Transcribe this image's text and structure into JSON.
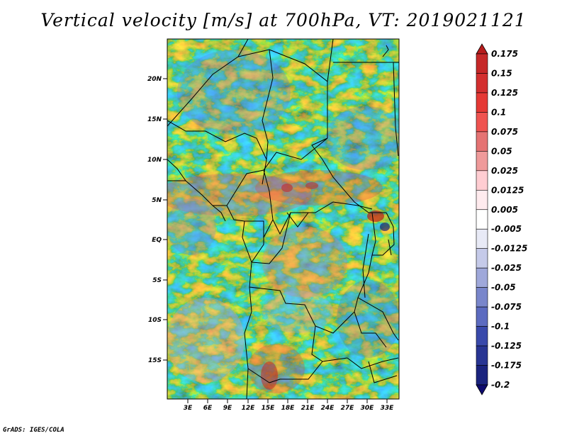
{
  "title": "Vertical velocity [m/s] at 700hPa, VT: 2019021121",
  "credit": "GrADS: IGES/COLA",
  "lat_labels": [
    "20N",
    "15N",
    "10N",
    "5N",
    "EQ",
    "5S",
    "10S",
    "15S"
  ],
  "lon_labels": [
    "3E",
    "6E",
    "9E",
    "12E",
    "15E",
    "18E",
    "21E",
    "24E",
    "27E",
    "30E",
    "33E"
  ],
  "colorbar": {
    "labels": [
      "0.175",
      "0.15",
      "0.125",
      "0.1",
      "0.075",
      "0.05",
      "0.025",
      "0.0125",
      "0.005",
      "-0.005",
      "-0.0125",
      "-0.025",
      "-0.05",
      "-0.075",
      "-0.1",
      "-0.125",
      "-0.175",
      "-0.2"
    ],
    "colors": [
      "#b71c1c",
      "#c62828",
      "#d32f2f",
      "#e53935",
      "#ef5350",
      "#e57373",
      "#ef9a9a",
      "#ffcdd2",
      "#ffebee",
      "#ffffff",
      "#e8eaf6",
      "#c5cae9",
      "#9fa8da",
      "#7986cb",
      "#5c6bc0",
      "#3949ab",
      "#283593",
      "#1a237e",
      "#0d0a6e"
    ]
  },
  "palette": {
    "red": "#d9434a",
    "pink": "#f3b5b8",
    "blue": "#6a6fe0",
    "lightblue": "#c9cbf6"
  }
}
